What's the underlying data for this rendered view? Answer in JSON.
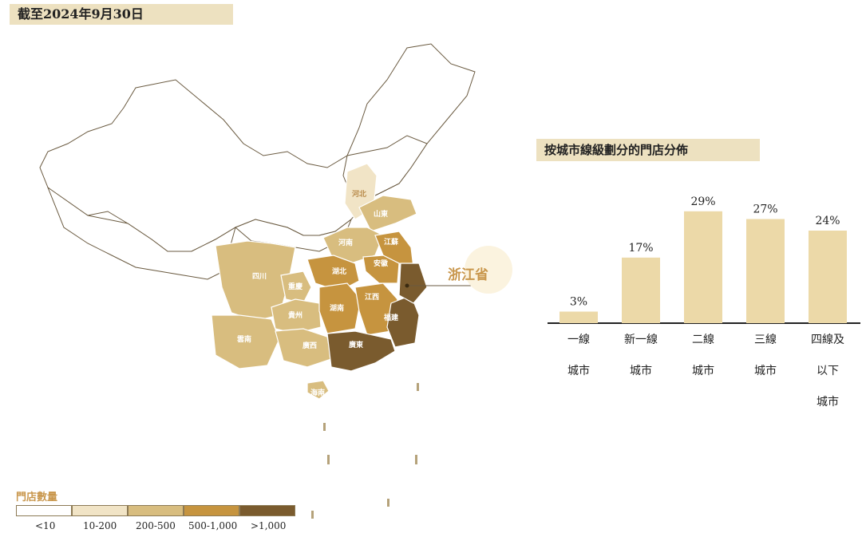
{
  "header": {
    "date": "截至2024年9月30日"
  },
  "map": {
    "provinces": [
      {
        "name": "河北",
        "tier": "10-200"
      },
      {
        "name": "山東",
        "tier": "200-500"
      },
      {
        "name": "河南",
        "tier": "200-500"
      },
      {
        "name": "江蘇",
        "tier": "500-1,000"
      },
      {
        "name": "安徽",
        "tier": "500-1,000"
      },
      {
        "name": "四川",
        "tier": "200-500"
      },
      {
        "name": "重慶",
        "tier": "200-500"
      },
      {
        "name": "湖北",
        "tier": "500-1,000"
      },
      {
        "name": "貴州",
        "tier": "200-500"
      },
      {
        "name": "湖南",
        "tier": "500-1,000"
      },
      {
        "name": "江西",
        "tier": "500-1,000"
      },
      {
        "name": "福建",
        "tier": ">1,000"
      },
      {
        "name": "雲南",
        "tier": "200-500"
      },
      {
        "name": "廣西",
        "tier": "200-500"
      },
      {
        "name": "廣東",
        "tier": ">1,000"
      },
      {
        "name": "海南",
        "tier": "200-500"
      },
      {
        "name": "浙江",
        "tier": ">1,000"
      }
    ],
    "callout": "浙江省"
  },
  "legend": {
    "title": "門店數量",
    "items": [
      {
        "label": "<10",
        "color": "#ffffff"
      },
      {
        "label": "10-200",
        "color": "#f1e4c6"
      },
      {
        "label": "200-500",
        "color": "#d8bd7f"
      },
      {
        "label": "500-1,000",
        "color": "#c6943f"
      },
      {
        "label": ">1,000",
        "color": "#7a5b2e"
      }
    ]
  },
  "chart_data": {
    "type": "bar",
    "title": "按城市線級劃分的門店分佈",
    "categories": [
      [
        "一線",
        "城市"
      ],
      [
        "新一線",
        "城市"
      ],
      [
        "二線",
        "城市"
      ],
      [
        "三線",
        "城市"
      ],
      [
        "四線及",
        "以下",
        "城市"
      ]
    ],
    "values": [
      3,
      17,
      29,
      27,
      24
    ],
    "value_labels": [
      "3%",
      "17%",
      "29%",
      "27%",
      "24%"
    ],
    "ylim": [
      0,
      30
    ],
    "bar_color": "#ecd9a8"
  }
}
